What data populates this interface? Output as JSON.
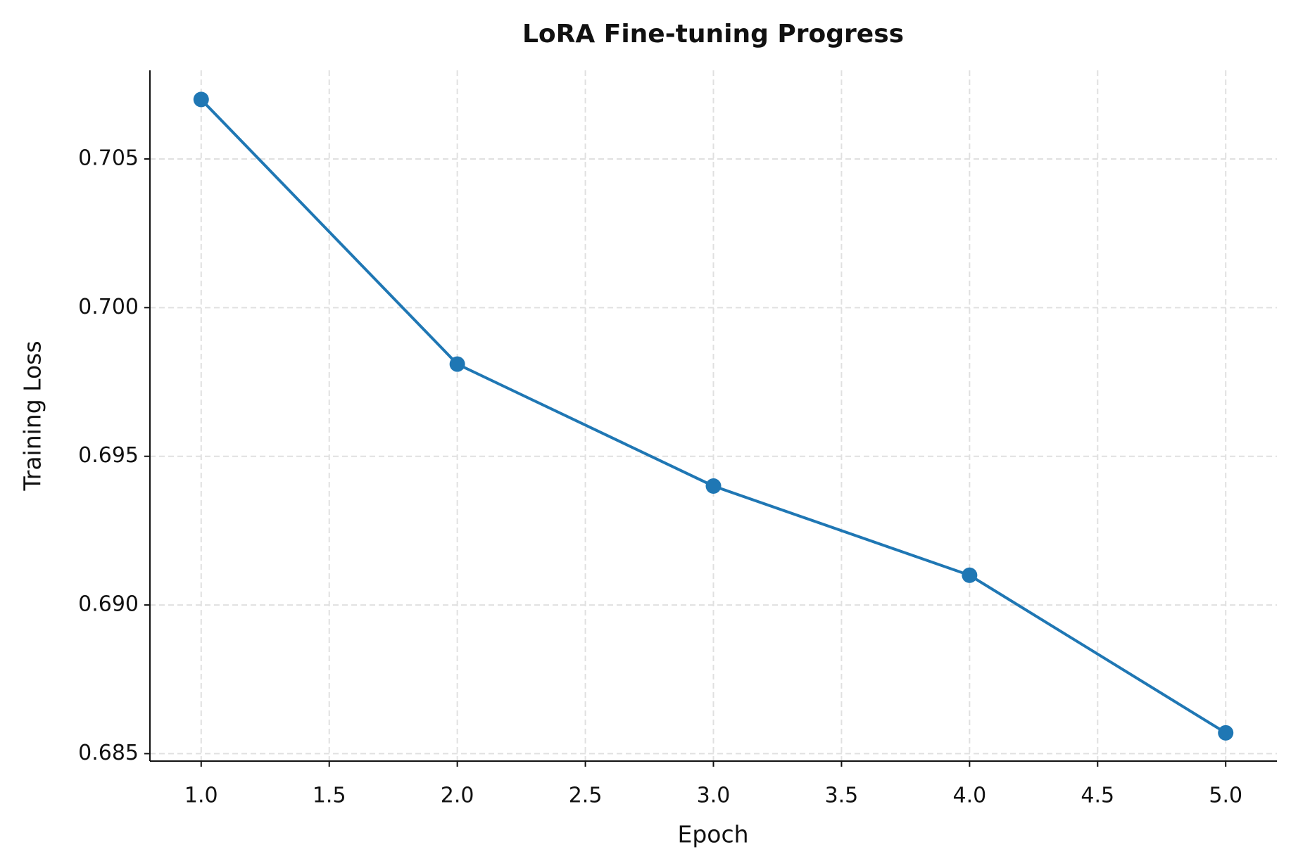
{
  "chart_data": {
    "type": "line",
    "title": "LoRA Fine-tuning Progress",
    "x_label": "Epoch",
    "y_label": "Training Loss",
    "x": [
      1,
      2,
      3,
      4,
      5
    ],
    "series": [
      {
        "name": "Training Loss",
        "color": "#1f77b4",
        "values": [
          0.707,
          0.6981,
          0.694,
          0.691,
          0.6857
        ]
      }
    ],
    "xlim": [
      0.8,
      5.2
    ],
    "xticks": [
      {
        "value": 1,
        "label": "1.0"
      },
      {
        "value": 1.5,
        "label": "1.5"
      },
      {
        "value": 2,
        "label": "2.0"
      },
      {
        "value": 2.5,
        "label": "2.5"
      },
      {
        "value": 3,
        "label": "3.0"
      },
      {
        "value": 3.5,
        "label": "3.5"
      },
      {
        "value": 4,
        "label": "4.0"
      },
      {
        "value": 4.5,
        "label": "4.5"
      },
      {
        "value": 5,
        "label": "5.0"
      }
    ],
    "ylim": [
      0.68475,
      0.70798
    ],
    "yticks": [
      0.685,
      {
        "value": 0.69,
        "label": "0.690"
      },
      0.695,
      {
        "value": 0.7,
        "label": "0.700"
      },
      0.705
    ],
    "grid": true,
    "markers": true
  }
}
